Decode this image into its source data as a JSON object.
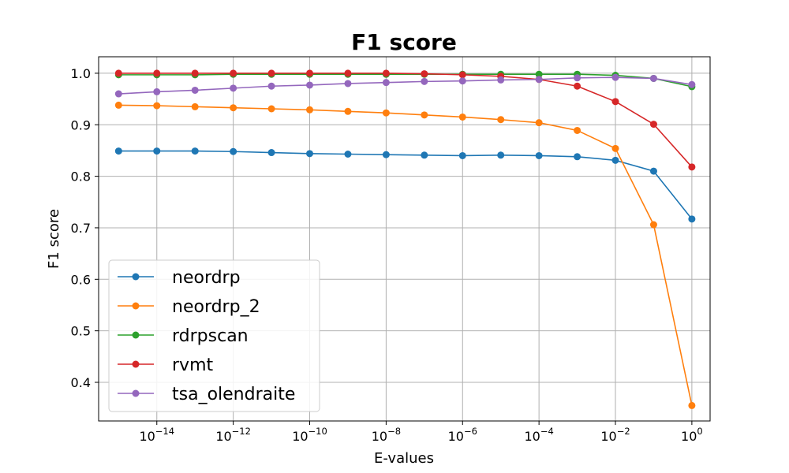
{
  "chart_data": {
    "type": "line",
    "title": "F1 score",
    "xlabel": "E-values",
    "ylabel": "F1 score",
    "x_scale": "log",
    "x": [
      1e-15,
      1e-14,
      1e-13,
      1e-12,
      1e-11,
      1e-10,
      1e-09,
      1e-08,
      1e-07,
      1e-06,
      1e-05,
      0.0001,
      0.001,
      0.01,
      0.1,
      1
    ],
    "xlim": [
      3e-16,
      3
    ],
    "ylim": [
      0.325,
      1.032
    ],
    "xticks": [
      {
        "base": "10",
        "exp": "−14",
        "value": 1e-14
      },
      {
        "base": "10",
        "exp": "−12",
        "value": 1e-12
      },
      {
        "base": "10",
        "exp": "−10",
        "value": 1e-10
      },
      {
        "base": "10",
        "exp": "−8",
        "value": 1e-08
      },
      {
        "base": "10",
        "exp": "−6",
        "value": 1e-06
      },
      {
        "base": "10",
        "exp": "−4",
        "value": 0.0001
      },
      {
        "base": "10",
        "exp": "−2",
        "value": 0.01
      },
      {
        "base": "10",
        "exp": "0",
        "value": 1
      }
    ],
    "yticks": [
      {
        "label": "0.4",
        "value": 0.4
      },
      {
        "label": "0.5",
        "value": 0.5
      },
      {
        "label": "0.6",
        "value": 0.6
      },
      {
        "label": "0.7",
        "value": 0.7
      },
      {
        "label": "0.8",
        "value": 0.8
      },
      {
        "label": "0.9",
        "value": 0.9
      },
      {
        "label": "1.0",
        "value": 1.0
      }
    ],
    "grid": true,
    "legend_position": "lower-left",
    "series": [
      {
        "name": "neordrp",
        "color": "#1f77b4",
        "values": [
          0.849,
          0.849,
          0.849,
          0.848,
          0.846,
          0.844,
          0.843,
          0.842,
          0.841,
          0.84,
          0.841,
          0.84,
          0.838,
          0.831,
          0.81,
          0.717
        ]
      },
      {
        "name": "neordrp_2",
        "color": "#ff7f0e",
        "values": [
          0.938,
          0.937,
          0.935,
          0.933,
          0.931,
          0.929,
          0.926,
          0.923,
          0.919,
          0.915,
          0.91,
          0.904,
          0.889,
          0.854,
          0.706,
          0.355
        ]
      },
      {
        "name": "rdrpscan",
        "color": "#2ca02c",
        "values": [
          0.997,
          0.997,
          0.997,
          0.998,
          0.998,
          0.998,
          0.998,
          0.998,
          0.998,
          0.998,
          0.998,
          0.998,
          0.998,
          0.996,
          0.99,
          0.974
        ]
      },
      {
        "name": "rvmt",
        "color": "#d62728",
        "values": [
          1.0,
          1.0,
          1.0,
          1.0,
          1.0,
          1.0,
          1.0,
          1.0,
          0.999,
          0.997,
          0.994,
          0.988,
          0.975,
          0.945,
          0.901,
          0.818
        ]
      },
      {
        "name": "tsa_olendraite",
        "color": "#9467bd",
        "values": [
          0.96,
          0.964,
          0.967,
          0.971,
          0.975,
          0.977,
          0.98,
          0.982,
          0.984,
          0.985,
          0.987,
          0.988,
          0.991,
          0.992,
          0.99,
          0.978
        ]
      }
    ]
  }
}
